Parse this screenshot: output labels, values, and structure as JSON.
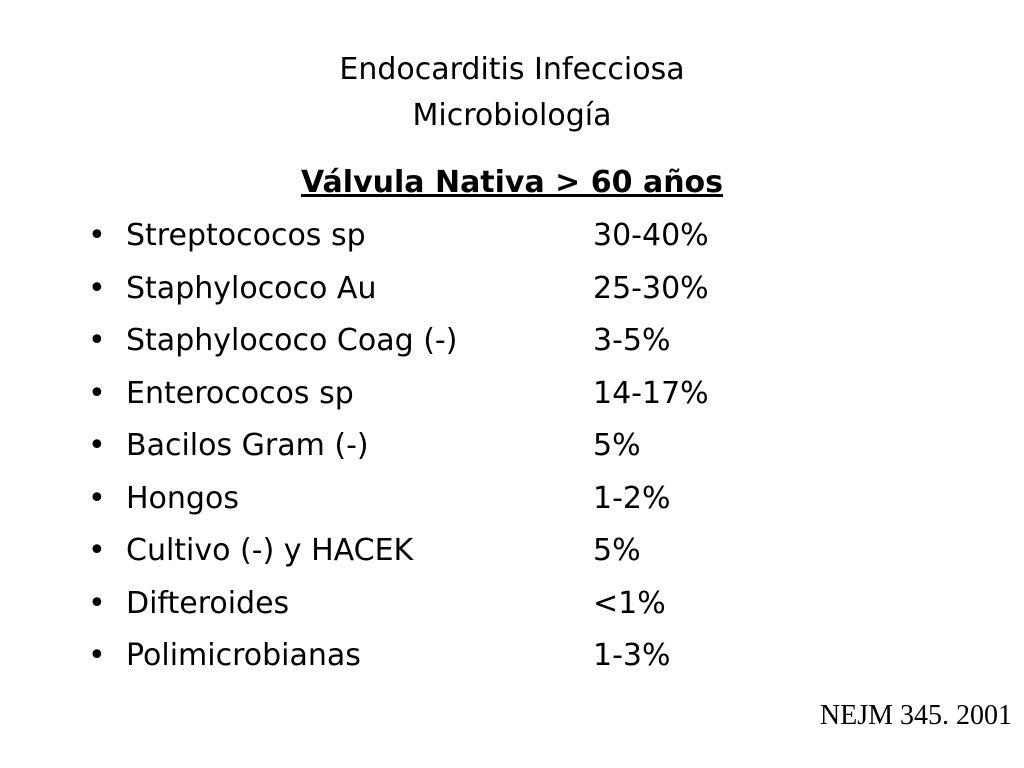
{
  "title": [
    "Endocarditis Infecciosa",
    "Microbiología"
  ],
  "subtitle": "Válvula Nativa > 60 años",
  "items": [
    {
      "name": "Streptococos sp",
      "value": "30-40%"
    },
    {
      "name": "Staphylococo Au",
      "value": "25-30%"
    },
    {
      "name": "Staphylococo Coag (-)",
      "value": "3-5%"
    },
    {
      "name": "Enterococos sp",
      "value": "14-17%"
    },
    {
      "name": "Bacilos Gram (-)",
      "value": "5%"
    },
    {
      "name": "Hongos",
      "value": "1-2%"
    },
    {
      "name": "Cultivo (-) y HACEK",
      "value": "5%"
    },
    {
      "name": "Difteroides",
      "value": "<1%"
    },
    {
      "name": "Polimicrobianas",
      "value": "1-3%"
    }
  ],
  "source": "NEJM 345. 2001"
}
